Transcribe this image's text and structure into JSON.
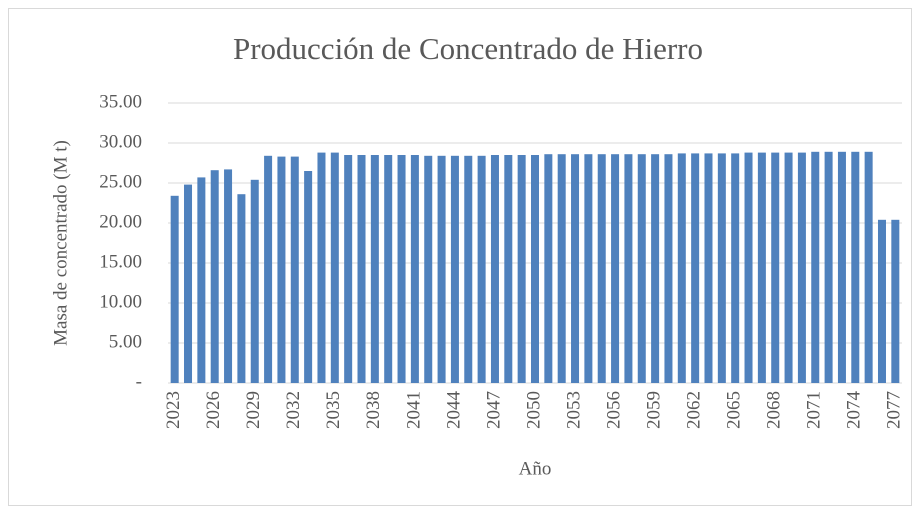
{
  "chart_data": {
    "type": "bar",
    "title": "Producción de Concentrado de Hierro",
    "xlabel": "Año",
    "ylabel": "Masa de concentrado (M t)",
    "categories": [
      "2023",
      null,
      null,
      "2026",
      null,
      null,
      "2029",
      null,
      null,
      "2032",
      null,
      null,
      "2035",
      null,
      null,
      "2038",
      null,
      null,
      "2041",
      null,
      null,
      "2044",
      null,
      null,
      "2047",
      null,
      null,
      "2050",
      null,
      null,
      "2053",
      null,
      null,
      "2056",
      null,
      null,
      "2059",
      null,
      null,
      "2062",
      null,
      null,
      "2065",
      null,
      null,
      "2068",
      null,
      null,
      "2071",
      null,
      null,
      "2074",
      null,
      null,
      "2077"
    ],
    "values": [
      23.4,
      24.8,
      25.7,
      26.6,
      26.7,
      23.6,
      25.4,
      28.4,
      28.3,
      28.3,
      26.5,
      28.8,
      28.8,
      28.5,
      28.5,
      28.5,
      28.5,
      28.5,
      28.5,
      28.4,
      28.4,
      28.4,
      28.4,
      28.4,
      28.5,
      28.5,
      28.5,
      28.5,
      28.6,
      28.6,
      28.6,
      28.6,
      28.6,
      28.6,
      28.6,
      28.6,
      28.6,
      28.6,
      28.7,
      28.7,
      28.7,
      28.7,
      28.7,
      28.8,
      28.8,
      28.8,
      28.8,
      28.8,
      28.9,
      28.9,
      28.9,
      28.9,
      28.9,
      20.4,
      20.4
    ],
    "color": "#4f81bd",
    "ylim": [
      0,
      35
    ],
    "yticks": [
      {
        "value": 0,
        "label": "-"
      },
      {
        "value": 5,
        "label": "5.00"
      },
      {
        "value": 10,
        "label": "10.00"
      },
      {
        "value": 15,
        "label": "15.00"
      },
      {
        "value": 20,
        "label": "20.00"
      },
      {
        "value": 25,
        "label": "25.00"
      },
      {
        "value": 30,
        "label": "30.00"
      },
      {
        "value": 35,
        "label": "35.00"
      }
    ],
    "grid": true
  }
}
